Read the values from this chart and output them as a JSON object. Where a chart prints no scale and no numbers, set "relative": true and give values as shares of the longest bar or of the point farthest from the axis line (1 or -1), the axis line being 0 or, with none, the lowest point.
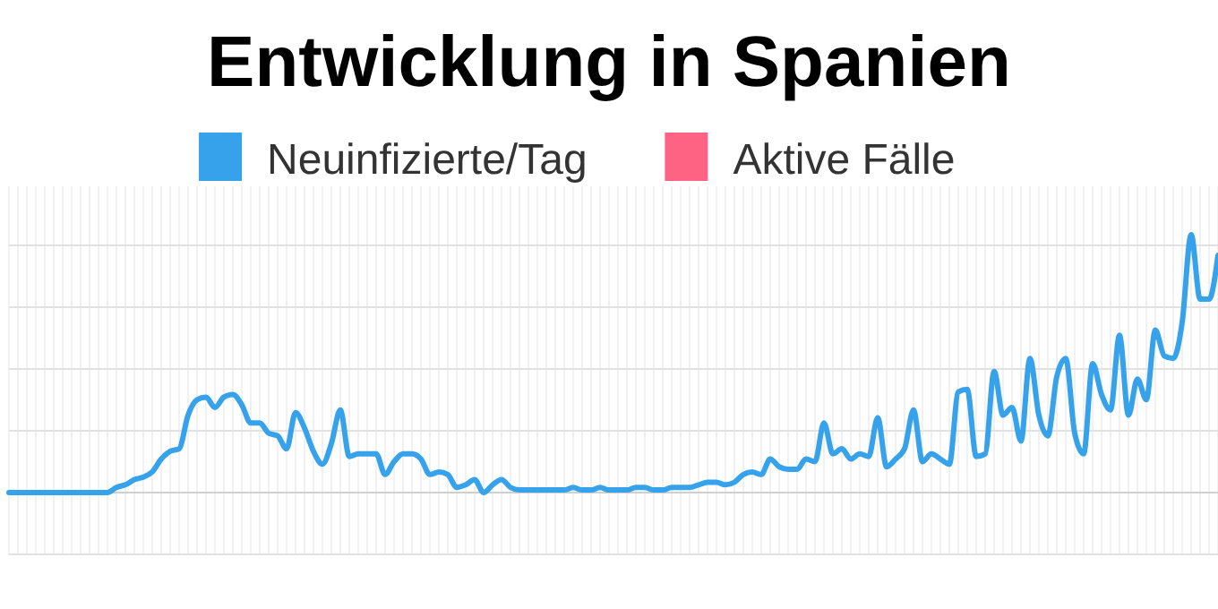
{
  "chart_data": {
    "type": "line",
    "title": "Entwicklung in Spanien",
    "relative": true,
    "grid": true,
    "legend": "top",
    "marker": "none",
    "line_style": "solid",
    "categories": [
      null,
      null,
      null,
      null,
      null,
      null,
      null,
      null,
      null,
      null,
      null,
      null,
      null,
      null,
      null,
      null,
      null,
      null,
      null,
      null,
      null,
      null,
      null,
      null,
      null,
      null,
      null,
      null,
      null,
      null,
      null,
      null,
      null,
      null,
      null,
      null,
      null,
      null,
      null,
      null,
      null,
      null,
      null,
      null,
      null,
      null,
      null,
      null,
      null,
      null,
      null,
      null,
      null,
      null,
      null,
      null,
      null,
      null,
      null,
      null,
      null,
      null,
      null,
      null,
      null,
      null,
      null,
      null,
      null,
      null,
      null,
      null,
      null,
      null,
      null,
      null,
      null,
      null,
      null,
      null,
      null,
      null,
      null,
      null,
      null,
      null,
      null,
      null,
      null,
      null,
      null,
      null,
      null,
      null,
      null,
      null,
      null,
      null,
      null,
      null,
      null,
      null,
      null,
      null,
      null,
      null,
      null,
      null,
      null,
      null,
      null,
      null,
      null,
      null,
      null,
      null,
      null,
      null,
      null,
      null,
      null,
      null,
      null,
      null,
      null,
      null,
      null,
      null,
      null,
      null,
      null,
      null,
      null,
      null,
      null,
      null
    ],
    "series": [
      {
        "name": "Neuinfizierte/Tag",
        "color": "#36a2eb",
        "values": [
          0,
          0,
          0,
          0,
          0,
          0,
          0,
          0,
          0,
          0,
          0,
          0,
          0.02,
          0.03,
          0.05,
          0.06,
          0.08,
          0.13,
          0.16,
          0.17,
          0.3,
          0.36,
          0.37,
          0.33,
          0.37,
          0.38,
          0.34,
          0.27,
          0.27,
          0.23,
          0.22,
          0.17,
          0.31,
          0.25,
          0.16,
          0.11,
          0.19,
          0.32,
          0.14,
          0.15,
          0.15,
          0.15,
          0.07,
          0.12,
          0.15,
          0.15,
          0.13,
          0.07,
          0.08,
          0.07,
          0.02,
          0.03,
          0.05,
          0,
          0.03,
          0.05,
          0.02,
          0.01,
          0.01,
          0.01,
          0.01,
          0.01,
          0.01,
          0.02,
          0.01,
          0.01,
          0.02,
          0.01,
          0.01,
          0.01,
          0.02,
          0.02,
          0.01,
          0.01,
          0.02,
          0.02,
          0.02,
          0.03,
          0.04,
          0.04,
          0.03,
          0.04,
          0.07,
          0.08,
          0.07,
          0.13,
          0.1,
          0.09,
          0.09,
          0.13,
          0.12,
          0.27,
          0.15,
          0.17,
          0.13,
          0.15,
          0.14,
          0.29,
          0.1,
          0.13,
          0.17,
          0.32,
          0.12,
          0.15,
          0.13,
          0.11,
          0.39,
          0.4,
          0.14,
          0.15,
          0.47,
          0.3,
          0.33,
          0.2,
          0.52,
          0.3,
          0.22,
          0.45,
          0.52,
          0.23,
          0.15,
          0.5,
          0.38,
          0.32,
          0.61,
          0.3,
          0.44,
          0.36,
          0.63,
          0.53,
          0.52,
          0.66,
          1,
          0.75,
          0.75,
          0.92
        ]
      },
      {
        "name": "Aktive Fälle",
        "color": "#ff6384",
        "values": [
          null,
          null,
          null,
          null,
          null,
          null,
          null,
          null,
          null,
          null,
          null,
          null,
          null,
          null,
          null,
          null,
          null,
          null,
          null,
          null,
          null,
          null,
          null,
          null,
          null,
          null,
          null,
          null,
          null,
          null,
          null,
          null,
          null,
          null,
          null,
          null,
          null,
          null,
          null,
          null,
          null,
          null,
          null,
          null,
          null,
          null,
          null,
          null,
          null,
          null,
          null,
          null,
          null,
          null,
          null,
          null,
          null,
          null,
          null,
          null,
          null,
          null,
          null,
          null,
          null,
          null,
          null,
          null,
          null,
          null,
          null,
          null,
          null,
          null,
          null,
          null,
          null,
          null,
          null,
          null,
          null,
          null,
          null,
          null,
          null,
          null,
          null,
          null,
          null,
          null,
          null,
          null,
          null,
          null,
          null,
          null,
          null,
          null,
          null,
          null,
          null,
          null,
          null,
          null,
          null,
          null,
          null,
          null,
          null,
          null,
          null,
          null,
          null,
          null,
          null,
          null,
          null,
          null,
          null,
          null,
          null,
          null,
          null,
          null,
          null,
          null,
          null,
          null,
          null,
          null,
          null,
          null,
          null,
          null,
          null,
          null
        ]
      }
    ]
  }
}
